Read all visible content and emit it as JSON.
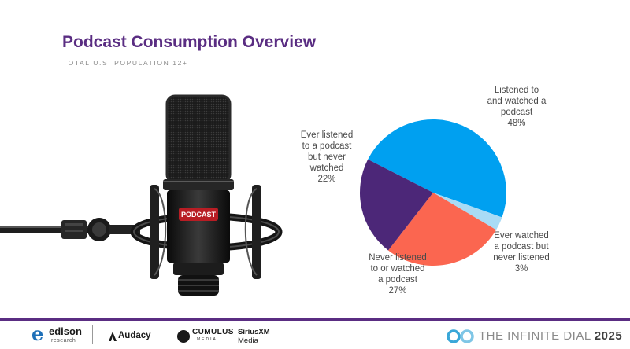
{
  "slide": {
    "title": "Podcast Consumption Overview",
    "subtitle": "TOTAL U.S. POPULATION 12+"
  },
  "mic": {
    "badge": "PODCAST"
  },
  "chart_data": {
    "type": "pie",
    "slices": [
      {
        "label": "Listened to and watched a podcast",
        "label_lines": [
          "Listened to",
          "and watched a",
          "podcast"
        ],
        "value": 48,
        "value_text": "48%",
        "color": "#00a0f0"
      },
      {
        "label": "Ever watched a podcast but never listened",
        "label_lines": [
          "Ever watched",
          "a podcast but",
          "never listened"
        ],
        "value": 3,
        "value_text": "3%",
        "color": "#a9dbf5"
      },
      {
        "label": "Never listened to or watched a podcast",
        "label_lines": [
          "Never listened",
          "to or watched",
          "a podcast"
        ],
        "value": 27,
        "value_text": "27%",
        "color": "#fb6650"
      },
      {
        "label": "Ever listened to a podcast but never watched",
        "label_lines": [
          "Ever listened",
          "to a podcast",
          "but never",
          "watched"
        ],
        "value": 22,
        "value_text": "22%",
        "color": "#4c2778"
      }
    ]
  },
  "footer": {
    "edison_mark": "e",
    "edison_name": "edison",
    "edison_sub": "research",
    "audacy": "Audacy",
    "cumulus": "CUMULUS",
    "cumulus_sub": "MEDIA",
    "sirius": "SiriusXM",
    "sirius_sub": "Media",
    "infinite_dial": "THE INFINITE DIAL",
    "infinite_year": "2025"
  },
  "colors": {
    "brand_purple": "#5a2d82",
    "edison_blue": "#1d6fb8"
  }
}
